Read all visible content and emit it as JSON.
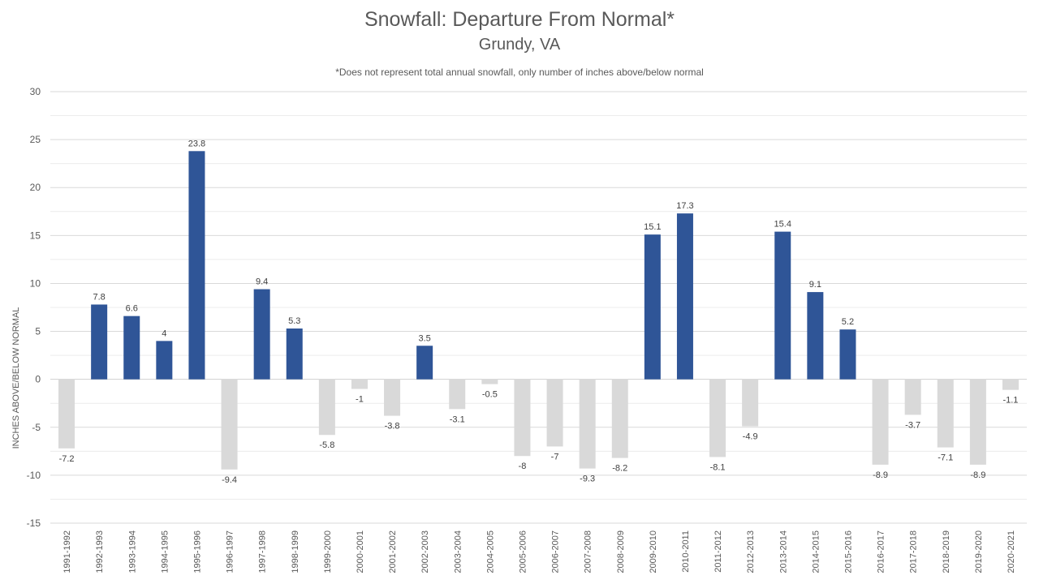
{
  "chart_data": {
    "type": "bar",
    "title": "Snowfall: Departure From Normal*",
    "subtitle": "Grundy, VA",
    "note": "*Does not represent  total annual snowfall, only number of inches above/below normal",
    "ylabel": "INCHES ABOVE/BELOW NORMAL",
    "xlabel": "",
    "ylim": [
      -15,
      30
    ],
    "yticks": [
      30,
      25,
      20,
      15,
      10,
      5,
      0,
      -5,
      -10,
      -15
    ],
    "grid": true,
    "positive_color": "#2F5597",
    "negative_color": "#D9D9D9",
    "categories": [
      "1991-1992",
      "1992-1993",
      "1993-1994",
      "1994-1995",
      "1995-1996",
      "1996-1997",
      "1997-1998",
      "1998-1999",
      "1999-2000",
      "2000-2001",
      "2001-2002",
      "2002-2003",
      "2003-2004",
      "2004-2005",
      "2005-2006",
      "2006-2007",
      "2007-2008",
      "2008-2009",
      "2009-2010",
      "2010-2011",
      "2011-2012",
      "2012-2013",
      "2013-2014",
      "2014-2015",
      "2015-2016",
      "2016-2017",
      "2017-2018",
      "2018-2019",
      "2019-2020",
      "2020-2021"
    ],
    "values": [
      -7.2,
      7.8,
      6.6,
      4,
      23.8,
      -9.4,
      9.4,
      5.3,
      -5.8,
      -1,
      -3.8,
      3.5,
      -3.1,
      -0.5,
      -8,
      -7,
      -9.3,
      -8.2,
      15.1,
      17.3,
      -8.1,
      -4.9,
      15.4,
      9.1,
      5.2,
      -8.9,
      -3.7,
      -7.1,
      -8.9,
      -1.1
    ]
  }
}
